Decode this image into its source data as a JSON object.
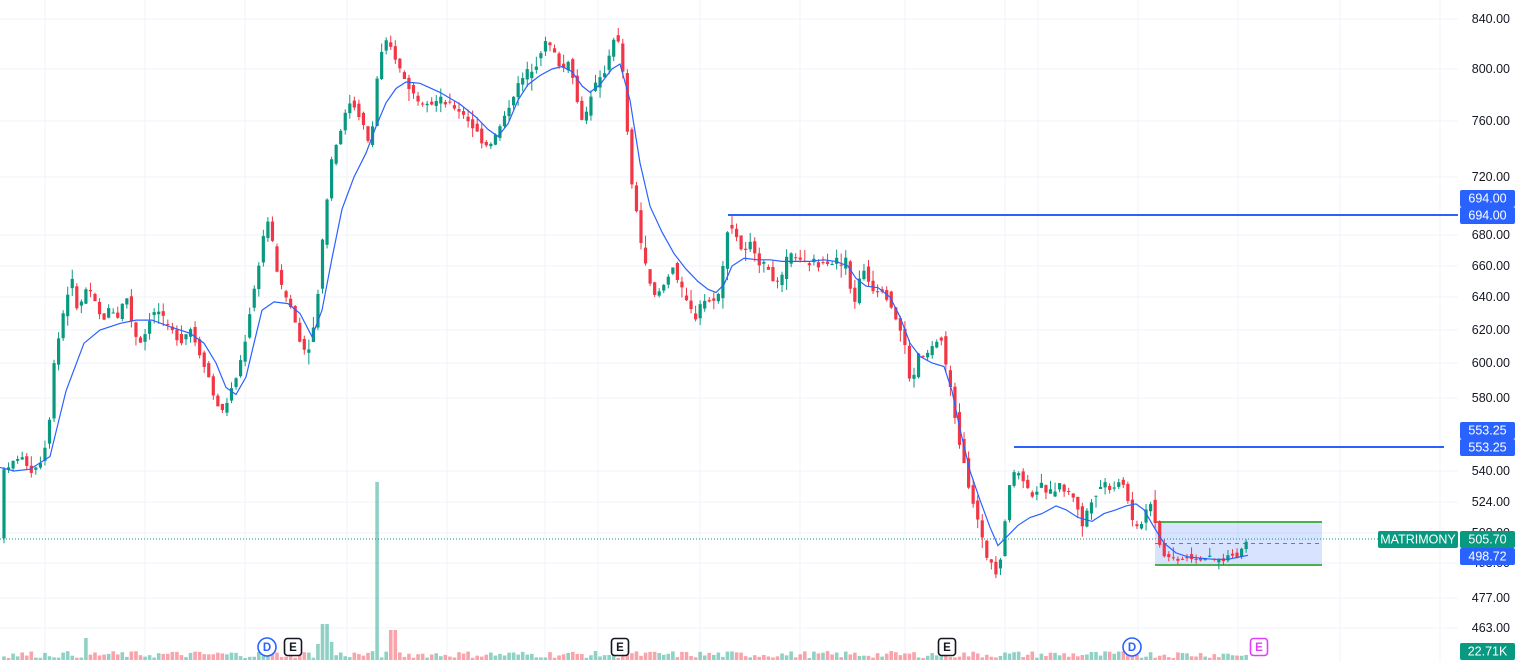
{
  "chart_data": {
    "type": "candlestick",
    "symbol": "MATRIMONY",
    "last_price": "505.70",
    "ma_value": "498.72",
    "volume_label": "22.71K",
    "y_ticks": [
      "840.00",
      "800.00",
      "760.00",
      "720.00",
      "680.00",
      "660.00",
      "640.00",
      "620.00",
      "600.00",
      "580.00",
      "540.00",
      "524.00",
      "508.00",
      "493.00",
      "477.00",
      "463.00"
    ],
    "levels": [
      {
        "price": 694.0,
        "label_top": "694.00",
        "label_bottom": "694.00"
      },
      {
        "price": 553.25,
        "label_top": "553.25",
        "label_bottom": "553.25"
      }
    ],
    "range_box": {
      "high": 511,
      "low": 490
    },
    "events": [
      {
        "letter": "D",
        "type": "dividend"
      },
      {
        "letter": "E",
        "type": "earnings"
      },
      {
        "letter": "E",
        "type": "earnings"
      },
      {
        "letter": "E",
        "type": "earnings"
      },
      {
        "letter": "D",
        "type": "dividend"
      },
      {
        "letter": "E",
        "type": "earnings-upcoming"
      }
    ],
    "price_path": [
      [
        0,
        545
      ],
      [
        8,
        540
      ],
      [
        16,
        548
      ],
      [
        24,
        546
      ],
      [
        32,
        540
      ],
      [
        40,
        545
      ],
      [
        48,
        560
      ],
      [
        54,
        600
      ],
      [
        60,
        620
      ],
      [
        66,
        640
      ],
      [
        72,
        650
      ],
      [
        78,
        630
      ],
      [
        86,
        645
      ],
      [
        94,
        638
      ],
      [
        102,
        625
      ],
      [
        110,
        634
      ],
      [
        118,
        628
      ],
      [
        126,
        642
      ],
      [
        134,
        618
      ],
      [
        142,
        612
      ],
      [
        150,
        628
      ],
      [
        158,
        632
      ],
      [
        166,
        622
      ],
      [
        174,
        618
      ],
      [
        182,
        614
      ],
      [
        190,
        622
      ],
      [
        198,
        608
      ],
      [
        206,
        598
      ],
      [
        214,
        580
      ],
      [
        222,
        572
      ],
      [
        230,
        582
      ],
      [
        238,
        595
      ],
      [
        244,
        610
      ],
      [
        250,
        632
      ],
      [
        256,
        650
      ],
      [
        262,
        676
      ],
      [
        268,
        690
      ],
      [
        274,
        668
      ],
      [
        280,
        648
      ],
      [
        286,
        640
      ],
      [
        292,
        632
      ],
      [
        298,
        618
      ],
      [
        304,
        608
      ],
      [
        310,
        612
      ],
      [
        316,
        628
      ],
      [
        320,
        660
      ],
      [
        326,
        700
      ],
      [
        332,
        735
      ],
      [
        338,
        748
      ],
      [
        344,
        762
      ],
      [
        350,
        775
      ],
      [
        356,
        770
      ],
      [
        362,
        760
      ],
      [
        368,
        745
      ],
      [
        372,
        752
      ],
      [
        378,
        800
      ],
      [
        384,
        820
      ],
      [
        390,
        818
      ],
      [
        396,
        808
      ],
      [
        402,
        795
      ],
      [
        408,
        788
      ],
      [
        414,
        780
      ],
      [
        420,
        775
      ],
      [
        426,
        778
      ],
      [
        432,
        774
      ],
      [
        440,
        776
      ],
      [
        448,
        772
      ],
      [
        456,
        770
      ],
      [
        464,
        765
      ],
      [
        472,
        757
      ],
      [
        480,
        748
      ],
      [
        488,
        742
      ],
      [
        496,
        750
      ],
      [
        504,
        762
      ],
      [
        512,
        778
      ],
      [
        520,
        790
      ],
      [
        528,
        798
      ],
      [
        536,
        805
      ],
      [
        544,
        822
      ],
      [
        550,
        818
      ],
      [
        556,
        810
      ],
      [
        562,
        798
      ],
      [
        568,
        808
      ],
      [
        574,
        792
      ],
      [
        578,
        770
      ],
      [
        584,
        758
      ],
      [
        590,
        780
      ],
      [
        596,
        788
      ],
      [
        602,
        792
      ],
      [
        608,
        808
      ],
      [
        614,
        826
      ],
      [
        620,
        818
      ],
      [
        626,
        770
      ],
      [
        630,
        720
      ],
      [
        636,
        700
      ],
      [
        642,
        670
      ],
      [
        648,
        652
      ],
      [
        654,
        640
      ],
      [
        660,
        644
      ],
      [
        666,
        650
      ],
      [
        672,
        662
      ],
      [
        678,
        650
      ],
      [
        684,
        640
      ],
      [
        690,
        632
      ],
      [
        696,
        628
      ],
      [
        702,
        640
      ],
      [
        708,
        636
      ],
      [
        714,
        640
      ],
      [
        720,
        642
      ],
      [
        728,
        688
      ],
      [
        734,
        684
      ],
      [
        740,
        672
      ],
      [
        746,
        668
      ],
      [
        752,
        676
      ],
      [
        758,
        664
      ],
      [
        764,
        660
      ],
      [
        770,
        658
      ],
      [
        776,
        646
      ],
      [
        782,
        652
      ],
      [
        788,
        666
      ],
      [
        794,
        668
      ],
      [
        800,
        662
      ],
      [
        806,
        660
      ],
      [
        812,
        664
      ],
      [
        818,
        660
      ],
      [
        824,
        666
      ],
      [
        830,
        662
      ],
      [
        836,
        664
      ],
      [
        842,
        660
      ],
      [
        848,
        666
      ],
      [
        852,
        630
      ],
      [
        858,
        648
      ],
      [
        864,
        658
      ],
      [
        870,
        648
      ],
      [
        876,
        644
      ],
      [
        882,
        646
      ],
      [
        888,
        640
      ],
      [
        894,
        630
      ],
      [
        900,
        620
      ],
      [
        904,
        614
      ],
      [
        908,
        596
      ],
      [
        912,
        585
      ],
      [
        918,
        606
      ],
      [
        924,
        602
      ],
      [
        930,
        608
      ],
      [
        936,
        612
      ],
      [
        940,
        618
      ],
      [
        946,
        598
      ],
      [
        952,
        580
      ],
      [
        958,
        560
      ],
      [
        964,
        546
      ],
      [
        970,
        530
      ],
      [
        976,
        518
      ],
      [
        982,
        505
      ],
      [
        988,
        496
      ],
      [
        992,
        494
      ],
      [
        996,
        490
      ],
      [
        1002,
        500
      ],
      [
        1006,
        520
      ],
      [
        1010,
        535
      ],
      [
        1016,
        540
      ],
      [
        1022,
        538
      ],
      [
        1028,
        530
      ],
      [
        1034,
        528
      ],
      [
        1040,
        532
      ],
      [
        1046,
        530
      ],
      [
        1052,
        528
      ],
      [
        1058,
        534
      ],
      [
        1064,
        530
      ],
      [
        1070,
        528
      ],
      [
        1076,
        526
      ],
      [
        1082,
        510
      ],
      [
        1088,
        522
      ],
      [
        1094,
        528
      ],
      [
        1100,
        532
      ],
      [
        1106,
        534
      ],
      [
        1112,
        530
      ],
      [
        1118,
        536
      ],
      [
        1124,
        532
      ],
      [
        1130,
        522
      ],
      [
        1134,
        508
      ],
      [
        1140,
        512
      ],
      [
        1146,
        520
      ],
      [
        1152,
        525
      ],
      [
        1158,
        505
      ],
      [
        1164,
        500
      ],
      [
        1170,
        497
      ],
      [
        1176,
        496
      ],
      [
        1182,
        497
      ],
      [
        1188,
        498
      ],
      [
        1194,
        497
      ],
      [
        1200,
        496
      ],
      [
        1206,
        497
      ],
      [
        1212,
        496
      ],
      [
        1218,
        495
      ],
      [
        1224,
        496
      ],
      [
        1230,
        500
      ],
      [
        1236,
        498
      ],
      [
        1242,
        502
      ],
      [
        1248,
        505.7
      ]
    ],
    "ma_path": [
      [
        0,
        542
      ],
      [
        14,
        540
      ],
      [
        30,
        541
      ],
      [
        50,
        548
      ],
      [
        66,
        584
      ],
      [
        84,
        612
      ],
      [
        100,
        620
      ],
      [
        120,
        624
      ],
      [
        136,
        626
      ],
      [
        152,
        626
      ],
      [
        170,
        622
      ],
      [
        190,
        618
      ],
      [
        204,
        612
      ],
      [
        216,
        600
      ],
      [
        226,
        586
      ],
      [
        236,
        582
      ],
      [
        246,
        592
      ],
      [
        254,
        612
      ],
      [
        262,
        632
      ],
      [
        274,
        637
      ],
      [
        288,
        636
      ],
      [
        300,
        630
      ],
      [
        312,
        616
      ],
      [
        322,
        632
      ],
      [
        332,
        665
      ],
      [
        342,
        698
      ],
      [
        354,
        720
      ],
      [
        366,
        737
      ],
      [
        376,
        756
      ],
      [
        386,
        774
      ],
      [
        396,
        785
      ],
      [
        406,
        790
      ],
      [
        420,
        789
      ],
      [
        440,
        782
      ],
      [
        460,
        773
      ],
      [
        476,
        763
      ],
      [
        488,
        754
      ],
      [
        498,
        749
      ],
      [
        508,
        758
      ],
      [
        518,
        776
      ],
      [
        528,
        788
      ],
      [
        540,
        795
      ],
      [
        552,
        800
      ],
      [
        562,
        802
      ],
      [
        572,
        798
      ],
      [
        582,
        787
      ],
      [
        590,
        782
      ],
      [
        600,
        788
      ],
      [
        612,
        800
      ],
      [
        620,
        804
      ],
      [
        630,
        776
      ],
      [
        640,
        730
      ],
      [
        650,
        700
      ],
      [
        662,
        682
      ],
      [
        674,
        668
      ],
      [
        686,
        658
      ],
      [
        698,
        650
      ],
      [
        708,
        645
      ],
      [
        716,
        643
      ],
      [
        724,
        648
      ],
      [
        732,
        660
      ],
      [
        744,
        665
      ],
      [
        758,
        664
      ],
      [
        770,
        664
      ],
      [
        782,
        663
      ],
      [
        796,
        663
      ],
      [
        810,
        663
      ],
      [
        824,
        664
      ],
      [
        836,
        663
      ],
      [
        848,
        660
      ],
      [
        856,
        652
      ],
      [
        866,
        647
      ],
      [
        878,
        646
      ],
      [
        890,
        640
      ],
      [
        900,
        628
      ],
      [
        910,
        612
      ],
      [
        920,
        604
      ],
      [
        932,
        600
      ],
      [
        944,
        598
      ],
      [
        952,
        584
      ],
      [
        960,
        563
      ],
      [
        970,
        540
      ],
      [
        980,
        525
      ],
      [
        990,
        511
      ],
      [
        998,
        503
      ],
      [
        1008,
        507
      ],
      [
        1018,
        512
      ],
      [
        1030,
        516
      ],
      [
        1042,
        518
      ],
      [
        1056,
        522
      ],
      [
        1066,
        520
      ],
      [
        1078,
        516
      ],
      [
        1092,
        514
      ],
      [
        1104,
        518
      ],
      [
        1116,
        520
      ],
      [
        1126,
        522
      ],
      [
        1136,
        523
      ],
      [
        1144,
        520
      ],
      [
        1154,
        511
      ],
      [
        1164,
        504
      ],
      [
        1176,
        500
      ],
      [
        1188,
        498
      ],
      [
        1200,
        497
      ],
      [
        1214,
        496
      ],
      [
        1228,
        496
      ],
      [
        1240,
        498
      ],
      [
        1248,
        499
      ]
    ]
  }
}
